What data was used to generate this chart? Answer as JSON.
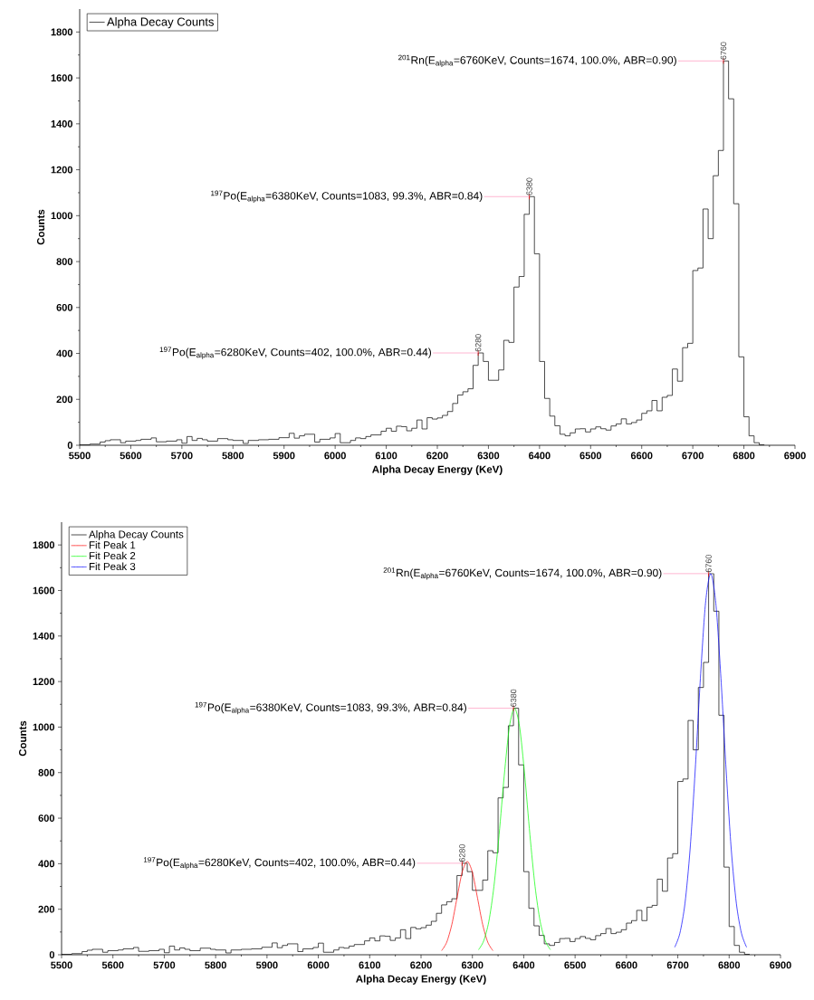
{
  "chart_data": [
    {
      "type": "histogram",
      "xlabel": "Alpha Decay Energy (KeV)",
      "ylabel": "Counts",
      "xlim": [
        5500,
        6900
      ],
      "ylim": [
        0,
        1900
      ],
      "xticks": [
        5500,
        5600,
        5700,
        5800,
        5900,
        6000,
        6100,
        6200,
        6300,
        6400,
        6500,
        6600,
        6700,
        6800,
        6900
      ],
      "yticks": [
        0,
        200,
        400,
        600,
        800,
        1000,
        1200,
        1400,
        1600,
        1800
      ],
      "legend": "top left",
      "bins": [
        5500,
        5510,
        5520,
        5530,
        5540,
        5550,
        5560,
        5570,
        5580,
        5590,
        5600,
        5610,
        5620,
        5630,
        5640,
        5650,
        5660,
        5670,
        5680,
        5690,
        5700,
        5710,
        5720,
        5730,
        5740,
        5750,
        5760,
        5770,
        5780,
        5790,
        5800,
        5810,
        5820,
        5830,
        5840,
        5850,
        5860,
        5870,
        5880,
        5890,
        5900,
        5910,
        5920,
        5930,
        5940,
        5950,
        5960,
        5970,
        5980,
        5990,
        6000,
        6010,
        6020,
        6030,
        6040,
        6050,
        6060,
        6070,
        6080,
        6090,
        6100,
        6110,
        6120,
        6130,
        6140,
        6150,
        6160,
        6170,
        6180,
        6190,
        6200,
        6210,
        6220,
        6230,
        6240,
        6250,
        6260,
        6270,
        6280,
        6290,
        6300,
        6310,
        6320,
        6330,
        6340,
        6350,
        6360,
        6370,
        6380,
        6390,
        6400,
        6410,
        6420,
        6430,
        6440,
        6450,
        6460,
        6470,
        6480,
        6490,
        6500,
        6510,
        6520,
        6530,
        6540,
        6550,
        6560,
        6570,
        6580,
        6590,
        6600,
        6610,
        6620,
        6630,
        6640,
        6650,
        6660,
        6670,
        6680,
        6690,
        6700,
        6710,
        6720,
        6730,
        6740,
        6750,
        6760,
        6770,
        6780,
        6790,
        6800,
        6810,
        6820,
        6830,
        6840
      ],
      "series": [
        {
          "name": "Alpha Decay Counts",
          "color": "#000000",
          "values": [
            2,
            2,
            5,
            5,
            14,
            20,
            24,
            24,
            11,
            18,
            18,
            21,
            26,
            26,
            32,
            15,
            15,
            18,
            18,
            24,
            9,
            38,
            21,
            30,
            24,
            18,
            18,
            29,
            29,
            24,
            21,
            21,
            8,
            21,
            21,
            24,
            24,
            26,
            26,
            33,
            33,
            52,
            31,
            41,
            48,
            48,
            14,
            26,
            26,
            32,
            51,
            11,
            11,
            21,
            32,
            29,
            38,
            45,
            45,
            61,
            74,
            61,
            83,
            81,
            63,
            74,
            110,
            71,
            120,
            114,
            119,
            130,
            147,
            182,
            219,
            233,
            246,
            348,
            402,
            365,
            283,
            283,
            328,
            457,
            448,
            689,
            735,
            1006,
            1083,
            834,
            365,
            204,
            127,
            85,
            48,
            41,
            54,
            71,
            72,
            58,
            71,
            80,
            72,
            66,
            84,
            93,
            115,
            93,
            99,
            110,
            139,
            150,
            195,
            150,
            209,
            217,
            332,
            279,
            425,
            444,
            761,
            772,
            1029,
            900,
            1174,
            1284,
            1674,
            1509,
            1052,
            385,
            124,
            41,
            11,
            2
          ]
        }
      ],
      "annotations": [
        {
          "text": "$^{201}$Rn(E$_{alpha}$=6760KeV, Counts=1674, 100.0%, ABR=0.90)",
          "x": 6760,
          "y": 1674
        },
        {
          "text": "$^{197}$Po(E$_{alpha}$=6380KeV, Counts=1083, 99.3%, ABR=0.84)",
          "x": 6380,
          "y": 1083
        },
        {
          "text": "$^{197}$Po(E$_{alpha}$=6280KeV, Counts=402, 100.0%, ABR=0.44)",
          "x": 6280,
          "y": 402
        },
        {
          "text": "6760",
          "x": 6760,
          "y": 1674
        },
        {
          "text": "6380",
          "x": 6380,
          "y": 1083
        },
        {
          "text": "6280",
          "x": 6280,
          "y": 402
        }
      ]
    },
    {
      "type": "histogram",
      "xlabel": "Alpha Decay Energy (KeV)",
      "ylabel": "Counts",
      "xlim": [
        5500,
        6900
      ],
      "ylim": [
        0,
        1900
      ],
      "xticks": [
        5500,
        5600,
        5700,
        5800,
        5900,
        6000,
        6100,
        6200,
        6300,
        6400,
        6500,
        6600,
        6700,
        6800,
        6900
      ],
      "yticks": [
        0,
        200,
        400,
        600,
        800,
        1000,
        1200,
        1400,
        1600,
        1800
      ],
      "legend": "top left",
      "bins": [
        5500,
        5510,
        5520,
        5530,
        5540,
        5550,
        5560,
        5570,
        5580,
        5590,
        5600,
        5610,
        5620,
        5630,
        5640,
        5650,
        5660,
        5670,
        5680,
        5690,
        5700,
        5710,
        5720,
        5730,
        5740,
        5750,
        5760,
        5770,
        5780,
        5790,
        5800,
        5810,
        5820,
        5830,
        5840,
        5850,
        5860,
        5870,
        5880,
        5890,
        5900,
        5910,
        5920,
        5930,
        5940,
        5950,
        5960,
        5970,
        5980,
        5990,
        6000,
        6010,
        6020,
        6030,
        6040,
        6050,
        6060,
        6070,
        6080,
        6090,
        6100,
        6110,
        6120,
        6130,
        6140,
        6150,
        6160,
        6170,
        6180,
        6190,
        6200,
        6210,
        6220,
        6230,
        6240,
        6250,
        6260,
        6270,
        6280,
        6290,
        6300,
        6310,
        6320,
        6330,
        6340,
        6350,
        6360,
        6370,
        6380,
        6390,
        6400,
        6410,
        6420,
        6430,
        6440,
        6450,
        6460,
        6470,
        6480,
        6490,
        6500,
        6510,
        6520,
        6530,
        6540,
        6550,
        6560,
        6570,
        6580,
        6590,
        6600,
        6610,
        6620,
        6630,
        6640,
        6650,
        6660,
        6670,
        6680,
        6690,
        6700,
        6710,
        6720,
        6730,
        6740,
        6750,
        6760,
        6770,
        6780,
        6790,
        6800,
        6810,
        6820,
        6830,
        6840
      ],
      "series": [
        {
          "name": "Alpha Decay Counts",
          "color": "#000000",
          "values": [
            2,
            2,
            5,
            5,
            14,
            20,
            24,
            24,
            11,
            18,
            18,
            21,
            26,
            26,
            32,
            15,
            15,
            18,
            18,
            24,
            9,
            38,
            21,
            30,
            24,
            18,
            18,
            29,
            29,
            24,
            21,
            21,
            8,
            21,
            21,
            24,
            24,
            26,
            26,
            33,
            33,
            52,
            31,
            41,
            48,
            48,
            14,
            26,
            26,
            32,
            51,
            11,
            11,
            21,
            32,
            29,
            38,
            45,
            45,
            61,
            74,
            61,
            83,
            81,
            63,
            74,
            110,
            71,
            120,
            114,
            119,
            130,
            147,
            182,
            219,
            233,
            246,
            348,
            402,
            365,
            283,
            283,
            328,
            457,
            448,
            689,
            735,
            1006,
            1083,
            834,
            365,
            204,
            127,
            85,
            48,
            41,
            54,
            71,
            72,
            58,
            71,
            80,
            72,
            66,
            84,
            93,
            115,
            93,
            99,
            110,
            139,
            150,
            195,
            150,
            209,
            217,
            332,
            279,
            425,
            444,
            761,
            772,
            1029,
            900,
            1174,
            1284,
            1674,
            1509,
            1052,
            385,
            124,
            41,
            11,
            2
          ]
        },
        {
          "name": "Fit Peak 1",
          "type": "line",
          "color": "#ff0000",
          "x": [
            6240,
            6250,
            6260,
            6270,
            6280,
            6290,
            6300,
            6310,
            6320,
            6330,
            6340
          ],
          "values": [
            18,
            55,
            133,
            249,
            362,
            410,
            362,
            249,
            133,
            55,
            18
          ]
        },
        {
          "name": "Fit Peak 2",
          "type": "line",
          "color": "#00ff00",
          "x": [
            6312,
            6322,
            6332,
            6342,
            6352,
            6362,
            6372,
            6382,
            6392,
            6402,
            6412,
            6422,
            6432,
            6442,
            6452
          ],
          "values": [
            22,
            61,
            146,
            301,
            527,
            786,
            1000,
            1083,
            1000,
            786,
            527,
            301,
            146,
            61,
            22
          ]
        },
        {
          "name": "Fit Peak 3",
          "type": "line",
          "color": "#0000ff",
          "x": [
            6694,
            6704,
            6714,
            6724,
            6734,
            6744,
            6754,
            6764,
            6774,
            6784,
            6794,
            6804,
            6814,
            6824,
            6834
          ],
          "values": [
            33,
            94,
            226,
            465,
            815,
            1215,
            1545,
            1674,
            1545,
            1215,
            815,
            465,
            226,
            94,
            33
          ]
        }
      ],
      "annotations": [
        {
          "text": "$^{201}$Rn(E$_{alpha}$=6760KeV, Counts=1674, 100.0%, ABR=0.90)",
          "x": 6760,
          "y": 1674
        },
        {
          "text": "$^{197}$Po(E$_{alpha}$=6380KeV, Counts=1083, 99.3%, ABR=0.84)",
          "x": 6380,
          "y": 1083
        },
        {
          "text": "$^{197}$Po(E$_{alpha}$=6280KeV, Counts=402, 100.0%, ABR=0.44)",
          "x": 6280,
          "y": 402
        },
        {
          "text": "6760",
          "x": 6760,
          "y": 1674
        },
        {
          "text": "6380",
          "x": 6380,
          "y": 1083
        },
        {
          "text": "6280",
          "x": 6280,
          "y": 402
        }
      ]
    }
  ]
}
